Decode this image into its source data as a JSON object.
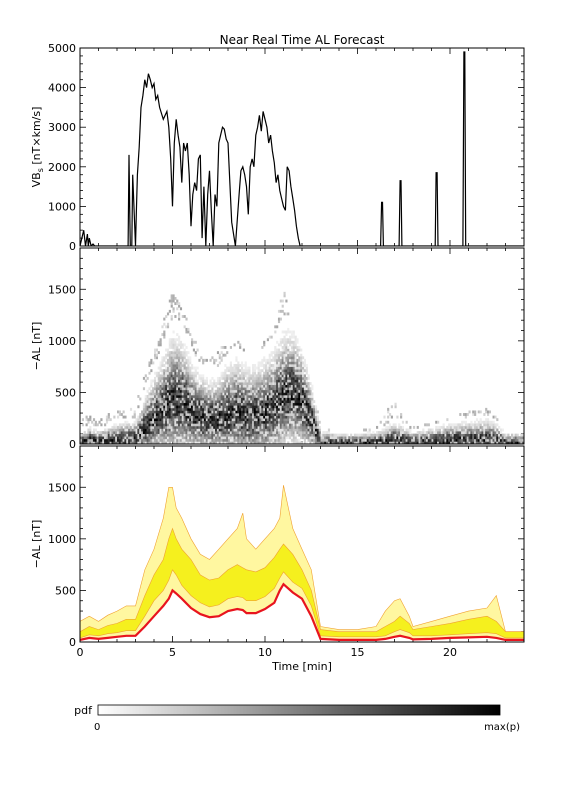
{
  "title": "Near Real Time AL Forecast",
  "xlabel": "Time [min]",
  "xlim": [
    0,
    24
  ],
  "xticks": [
    0,
    5,
    10,
    15,
    20
  ],
  "colorbar": {
    "label": "pdf",
    "min_label": "0",
    "max_label": "max(p)"
  },
  "colors": {
    "line": "#000000",
    "median": "#e8141e",
    "band_outer": "#fff7a0",
    "band_inner": "#f5f01e",
    "band_edge": "#f0a030"
  },
  "chart_data": [
    {
      "type": "line",
      "ylabel": "VB_s [nT×km/s]",
      "ylim": [
        0,
        5000
      ],
      "yticks": [
        0,
        1000,
        2000,
        3000,
        4000,
        5000
      ],
      "series": [
        {
          "x": [
            0,
            0.2,
            0.3,
            0.4,
            0.45,
            0.5,
            0.6,
            0.7,
            0.8,
            2.6,
            2.65,
            2.7,
            2.72,
            2.8,
            2.85,
            3.0,
            3.05,
            3.1,
            3.2,
            3.3,
            3.4,
            3.5,
            3.6,
            3.7,
            3.8,
            3.9,
            4.0,
            4.1,
            4.2,
            4.3,
            4.5,
            4.7,
            4.8,
            4.9,
            5.0,
            5.1,
            5.2,
            5.3,
            5.4,
            5.5,
            5.6,
            5.7,
            5.8,
            5.9,
            6.0,
            6.1,
            6.2,
            6.3,
            6.4,
            6.5,
            6.6,
            6.7,
            6.8,
            6.9,
            7.0,
            7.1,
            7.2,
            7.3,
            7.4,
            7.5,
            7.6,
            7.7,
            7.8,
            7.9,
            8.0,
            8.2,
            8.4,
            8.6,
            8.7,
            8.8,
            8.9,
            9.0,
            9.1,
            9.2,
            9.3,
            9.4,
            9.5,
            9.6,
            9.7,
            9.8,
            9.9,
            10.0,
            10.1,
            10.2,
            10.3,
            10.4,
            10.5,
            10.6,
            10.7,
            10.8,
            10.9,
            11.0,
            11.1,
            11.2,
            11.3,
            11.4,
            11.5,
            11.6,
            11.7,
            11.8,
            11.9,
            12.0,
            16.25,
            16.3,
            16.35,
            16.4,
            17.25,
            17.3,
            17.35,
            17.4,
            19.2,
            19.25,
            19.3,
            19.35,
            20.7,
            20.75,
            20.8,
            20.85,
            20.9,
            24
          ],
          "y": [
            0,
            400,
            0,
            300,
            0,
            200,
            0,
            50,
            0,
            0,
            2300,
            600,
            0,
            0,
            1800,
            0,
            900,
            1800,
            2500,
            3500,
            3800,
            4200,
            4000,
            4350,
            4200,
            4000,
            4100,
            3700,
            3800,
            3500,
            3200,
            3400,
            3000,
            2200,
            1000,
            2600,
            3200,
            2800,
            2500,
            1600,
            2600,
            2400,
            2600,
            1800,
            500,
            1300,
            1600,
            1400,
            2200,
            2300,
            200,
            1500,
            0,
            1300,
            1900,
            900,
            0,
            1300,
            1000,
            2600,
            2800,
            3000,
            2950,
            2700,
            2600,
            600,
            0,
            1300,
            1900,
            2000,
            1800,
            1500,
            800,
            2000,
            2200,
            2000,
            2800,
            3000,
            3300,
            2900,
            3400,
            3200,
            3000,
            2600,
            2800,
            2400,
            2100,
            1600,
            1800,
            1400,
            1200,
            1000,
            900,
            2000,
            1900,
            1500,
            1200,
            900,
            500,
            200,
            0,
            0,
            0,
            1100,
            1100,
            0,
            0,
            1650,
            1650,
            0,
            0,
            1850,
            1850,
            0,
            0,
            4900,
            4900,
            0,
            0,
            0
          ]
        }
      ]
    },
    {
      "type": "heatmap",
      "ylabel": "−AL [nT]",
      "ylim": [
        0,
        1900
      ],
      "yticks": [
        0,
        500,
        1000,
        1500
      ],
      "density_profile": {
        "x": [
          0,
          0.5,
          1,
          1.5,
          2,
          2.5,
          3,
          3.5,
          4,
          4.5,
          5,
          5.5,
          6,
          6.5,
          7,
          7.5,
          8,
          8.5,
          9,
          9.5,
          10,
          10.5,
          11,
          11.5,
          12,
          12.5,
          13,
          14,
          15,
          16,
          16.5,
          17,
          17.5,
          18,
          19,
          20,
          21,
          22,
          22.5,
          23,
          24
        ],
        "center": [
          20,
          40,
          30,
          40,
          50,
          60,
          60,
          150,
          250,
          350,
          430,
          420,
          330,
          270,
          240,
          250,
          300,
          320,
          280,
          280,
          320,
          380,
          480,
          500,
          420,
          250,
          30,
          20,
          20,
          20,
          30,
          50,
          40,
          25,
          30,
          40,
          45,
          50,
          40,
          20,
          20
        ],
        "spread": [
          50,
          80,
          60,
          80,
          90,
          100,
          100,
          200,
          260,
          320,
          400,
          380,
          300,
          260,
          240,
          250,
          300,
          320,
          300,
          300,
          320,
          340,
          380,
          380,
          320,
          220,
          60,
          50,
          50,
          60,
          80,
          100,
          80,
          60,
          80,
          100,
          110,
          120,
          100,
          60,
          50
        ],
        "upper_envelope": [
          220,
          300,
          200,
          300,
          300,
          350,
          350,
          700,
          900,
          1200,
          1500,
          1300,
          1100,
          850,
          800,
          900,
          1000,
          1000,
          900,
          900,
          1000,
          1100,
          1500,
          1100,
          900,
          700,
          150,
          120,
          120,
          150,
          300,
          400,
          250,
          150,
          200,
          250,
          300,
          330,
          250,
          100,
          100
        ]
      }
    },
    {
      "type": "area",
      "ylabel": "−AL [nT]",
      "ylim": [
        0,
        1900
      ],
      "yticks": [
        0,
        500,
        1000,
        1500
      ],
      "x": [
        0,
        0.5,
        1,
        1.5,
        2,
        2.5,
        3,
        3.5,
        4,
        4.5,
        4.8,
        5.0,
        5.2,
        5.5,
        6,
        6.5,
        7,
        7.5,
        8,
        8.5,
        8.8,
        9,
        9.5,
        10,
        10.5,
        10.8,
        11,
        11.5,
        12,
        12.5,
        13,
        14,
        15,
        16,
        16.5,
        17,
        17.3,
        17.8,
        18,
        19,
        20,
        21,
        22,
        22.5,
        23,
        24
      ],
      "series": [
        {
          "values": [
            20,
            40,
            30,
            40,
            50,
            60,
            60,
            150,
            250,
            350,
            420,
            500,
            470,
            420,
            330,
            270,
            240,
            250,
            300,
            320,
            310,
            280,
            280,
            320,
            380,
            500,
            560,
            480,
            420,
            250,
            30,
            20,
            20,
            20,
            30,
            50,
            60,
            40,
            25,
            30,
            40,
            45,
            50,
            40,
            20,
            20
          ]
        },
        {
          "values": [
            40,
            70,
            60,
            80,
            90,
            110,
            110,
            250,
            400,
            500,
            600,
            700,
            650,
            550,
            450,
            380,
            340,
            360,
            420,
            440,
            430,
            400,
            400,
            440,
            520,
            620,
            680,
            580,
            520,
            350,
            60,
            50,
            50,
            50,
            60,
            100,
            120,
            90,
            60,
            60,
            70,
            80,
            90,
            80,
            40,
            40
          ]
        },
        {
          "values": [
            100,
            150,
            120,
            160,
            180,
            220,
            220,
            450,
            650,
            800,
            1000,
            1100,
            1000,
            900,
            800,
            650,
            600,
            620,
            700,
            750,
            720,
            700,
            680,
            720,
            820,
            900,
            950,
            850,
            700,
            500,
            120,
            100,
            100,
            100,
            150,
            200,
            250,
            180,
            120,
            150,
            180,
            220,
            250,
            200,
            100,
            100
          ]
        },
        {
          "values": [
            200,
            250,
            200,
            260,
            300,
            350,
            350,
            700,
            900,
            1200,
            1500,
            1500,
            1300,
            1200,
            1000,
            850,
            800,
            900,
            1000,
            1100,
            1250,
            1000,
            900,
            1000,
            1100,
            1200,
            1520,
            1100,
            900,
            700,
            150,
            120,
            120,
            150,
            300,
            400,
            420,
            250,
            150,
            200,
            250,
            300,
            330,
            450,
            100,
            100
          ]
        }
      ]
    }
  ]
}
